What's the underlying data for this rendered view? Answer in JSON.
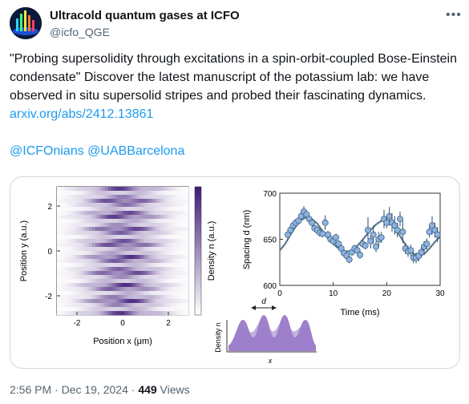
{
  "author": {
    "name": "Ultracold quantum gases at ICFO",
    "handle": "@icfo_QGE",
    "avatar_icon": "avatar-icon"
  },
  "more_icon": "more-icon",
  "tweet": {
    "text_part1": "\"Probing supersolidity through excitations in a spin-orbit-coupled Bose-Einstein condensate\"  Discover the latest manuscript of the potassium lab: we have observed in situ supersolid stripes and probed their fascinating dynamics.",
    "link": "arxiv.org/abs/2412.13861",
    "mentions": "@ICFOnians @UABBarcelona"
  },
  "figure": {
    "heatmap": {
      "ylabel": "Position y (a.u.)",
      "xlabel": "Position x (μm)",
      "colorbar_label": "Density n (a.u.)",
      "x_ticks": [
        "-2",
        "0",
        "2"
      ],
      "y_ticks": [
        "2",
        "0",
        "-2"
      ]
    },
    "schematic": {
      "ylabel": "Density n",
      "xlabel": "x",
      "d_label": "d"
    },
    "colors": {
      "purple": "#6b3fa0",
      "point": "#8eb3dd",
      "line": "#5a7892"
    }
  },
  "chart_data": {
    "type": "scatter",
    "xlabel": "Time (ms)",
    "ylabel": "Spacing d (nm)",
    "xlim": [
      0,
      30
    ],
    "ylim": [
      600,
      700
    ],
    "x_ticks": [
      "0",
      "10",
      "20",
      "30"
    ],
    "y_ticks": [
      "700",
      "650",
      "600"
    ],
    "series": [
      {
        "kind": "points",
        "x": [
          1.5,
          2.0,
          2.5,
          3.0,
          3.5,
          4.0,
          4.5,
          5.0,
          5.5,
          6.0,
          6.5,
          7.0,
          7.5,
          8.0,
          8.5,
          9.0,
          9.5,
          10.0,
          10.5,
          11.0,
          11.5,
          12.0,
          12.5,
          13.0,
          13.5,
          14.0,
          14.5,
          15.0,
          15.5,
          16.0,
          16.5,
          17.0,
          17.5,
          18.0,
          18.5,
          19.0,
          19.5,
          20.0,
          20.5,
          21.0,
          21.5,
          22.0,
          22.5,
          23.0,
          23.5,
          24.0,
          24.5,
          25.0,
          25.5,
          26.0,
          26.5,
          27.0,
          27.5,
          28.0,
          28.5,
          29.0,
          29.5
        ],
        "y": [
          655,
          660,
          665,
          668,
          670,
          675,
          680,
          677,
          672,
          668,
          662,
          660,
          657,
          656,
          668,
          655,
          650,
          648,
          652,
          645,
          640,
          635,
          632,
          628,
          636,
          640,
          638,
          633,
          645,
          643,
          660,
          648,
          655,
          642,
          650,
          652,
          672,
          668,
          675,
          668,
          665,
          660,
          672,
          658,
          640,
          637,
          638,
          630,
          630,
          632,
          636,
          642,
          645,
          658,
          665,
          660,
          655
        ],
        "err": [
          4,
          4,
          4,
          4,
          4,
          4,
          6,
          4,
          4,
          4,
          4,
          4,
          4,
          4,
          8,
          4,
          4,
          4,
          4,
          4,
          4,
          4,
          4,
          4,
          4,
          4,
          4,
          4,
          4,
          4,
          14,
          8,
          10,
          6,
          8,
          6,
          10,
          6,
          10,
          10,
          10,
          8,
          8,
          12,
          6,
          6,
          6,
          6,
          6,
          6,
          6,
          6,
          6,
          6,
          10,
          8,
          8
        ],
        "color": "#8eb3dd"
      },
      {
        "kind": "fit",
        "x": [
          0,
          1,
          2,
          3,
          4,
          5,
          6,
          7,
          8,
          9,
          10,
          11,
          12,
          13,
          14,
          15,
          16,
          17,
          18,
          19,
          20,
          21,
          22,
          23,
          24,
          25,
          26,
          27,
          28,
          29,
          30
        ],
        "y": [
          638,
          645,
          655,
          664,
          671,
          674,
          672,
          667,
          659,
          651,
          645,
          640,
          637,
          637,
          640,
          646,
          653,
          660,
          666,
          670,
          670,
          666,
          658,
          649,
          640,
          634,
          632,
          634,
          640,
          647,
          653
        ],
        "color": "#5a7892"
      }
    ]
  },
  "footer": {
    "time": "2:56 PM · Dec 19, 2024 · ",
    "views_count": "449",
    "views_label": " Views"
  }
}
